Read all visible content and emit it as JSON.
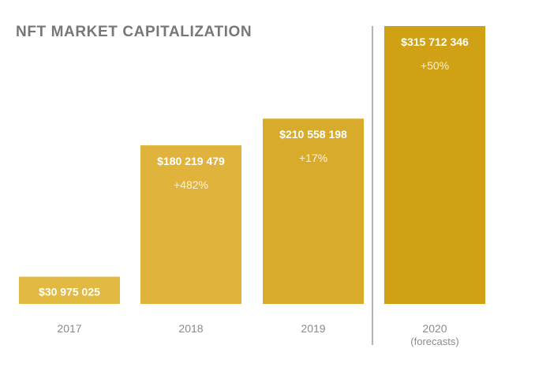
{
  "chart_data": {
    "type": "bar",
    "title": "NFT MARKET CAPITALIZATION",
    "categories": [
      "2017",
      "2018",
      "2019",
      "2020"
    ],
    "category_sublabels": [
      "",
      "",
      "",
      "(forecasts)"
    ],
    "values": [
      30975025,
      180219479,
      210558198,
      315712346
    ],
    "value_labels": [
      "$30 975 025",
      "$180 219 479",
      "$210 558 198",
      "$315 712 346"
    ],
    "growth_labels": [
      "",
      "+482%",
      "+17%",
      "+50%"
    ],
    "bar_colors": [
      "#e1b943",
      "#e0b43c",
      "#d8ab2a",
      "#d1a115"
    ],
    "separator_before_category": "2020",
    "xlabel": "",
    "ylabel": "",
    "ylim": [
      0,
      315712346
    ],
    "grid": false
  }
}
